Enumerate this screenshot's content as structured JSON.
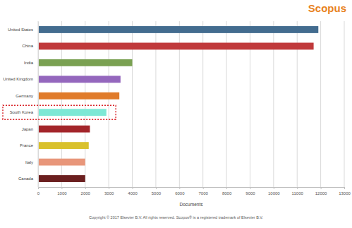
{
  "chart_data": {
    "type": "bar",
    "orientation": "horizontal",
    "title": "Scopus",
    "xlabel": "Documents",
    "annotations": [
      "Copyright © 2017 Elsevier B.V. All rights reserved. Scopus® is a registered trademark of Elsevier B.V."
    ],
    "categories": [
      "United States",
      "China",
      "India",
      "United Kingdom",
      "Germany",
      "South Korea",
      "Japan",
      "France",
      "Italy",
      "Canada"
    ],
    "values": [
      11900,
      11700,
      4000,
      3500,
      3450,
      2900,
      2200,
      2150,
      2000,
      2000
    ],
    "colors": [
      "#436c8f",
      "#c0393b",
      "#7aa152",
      "#9467bd",
      "#e07b2a",
      "#7de8d5",
      "#a3252a",
      "#d9c12c",
      "#e8967a",
      "#6b1f1f"
    ],
    "xlim": [
      0,
      13000
    ],
    "xticks": [
      0,
      1000,
      2000,
      3000,
      4000,
      5000,
      6000,
      7000,
      8000,
      9000,
      10000,
      11000,
      12000,
      13000
    ],
    "grid": true
  }
}
